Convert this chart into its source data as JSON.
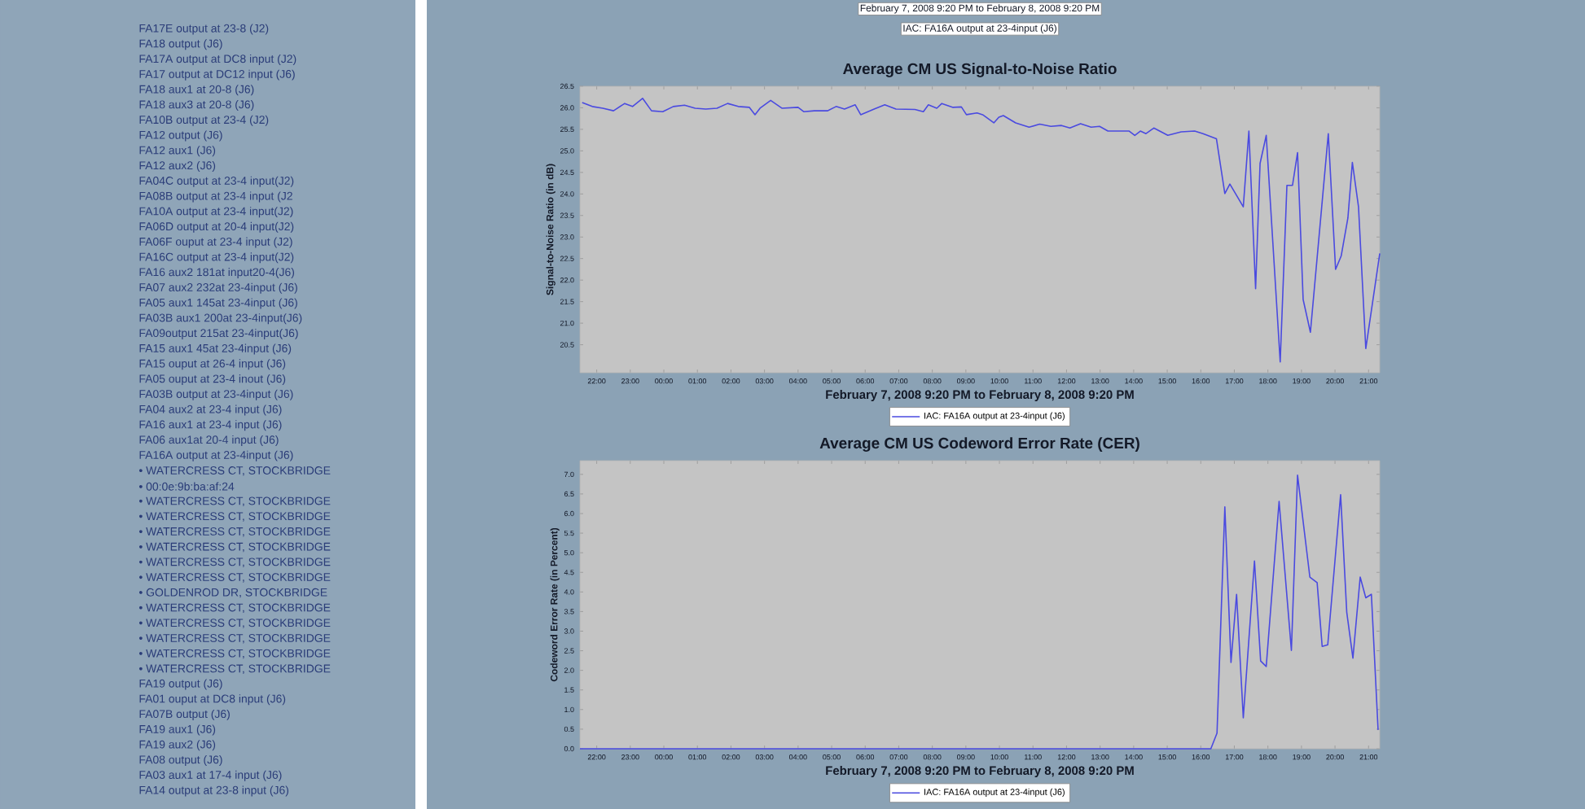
{
  "chart_data": [
    {
      "type": "other",
      "annotations": [
        "FA17E output at 23-8 (J2)",
        "FA18 output (J6)",
        "FA17A output at DC8 input (J2)",
        "FA17 output at DC12 input (J6)",
        "FA18 aux1 at 20-8 (J6)",
        "FA18 aux3 at 20-8 (J6)",
        "FA10B output at 23-4 (J2)",
        "FA12 output (J6)",
        "FA12 aux1 (J6)",
        "FA12 aux2 (J6)",
        "FA04C output at 23-4 input(J2)",
        "FA08B output at 23-4 input (J2",
        "FA10A output at 23-4 input(J2)",
        "FA06D output at 20-4 input(J2)",
        "FA06F ouput at 23-4 input (J2)",
        "FA16C output at 23-4 input(J2)",
        "FA16 aux2 181at input20-4(J6)",
        "FA07 aux2 232at 23-4input (J6)",
        "FA05 aux1 145at 23-4input (J6)",
        "FA03B aux1 200at 23-4input(J6)",
        "FA09output 215at 23-4input(J6)",
        "FA15 aux1 45at 23-4input (J6)",
        "FA15 ouput at 26-4 input (J6)",
        "FA05 ouput at 23-4 inout (J6)",
        "FA03B output at 23-4input (J6)",
        "FA04 aux2 at 23-4 input (J6)",
        "FA16 aux1 at 23-4 input (J6)",
        "FA06 aux1at 20-4 input (J6)",
        "FA16A output at 23-4input (J6)",
        "• WATERCRESS CT, STOCKBRIDGE",
        "• 00:0e:9b:ba:af:24",
        "• WATERCRESS CT, STOCKBRIDGE",
        "• WATERCRESS CT, STOCKBRIDGE",
        "• WATERCRESS CT, STOCKBRIDGE",
        "• WATERCRESS CT, STOCKBRIDGE",
        "• WATERCRESS CT, STOCKBRIDGE",
        "• WATERCRESS CT, STOCKBRIDGE",
        "• GOLDENROD DR, STOCKBRIDGE",
        "• WATERCRESS CT, STOCKBRIDGE",
        "• WATERCRESS CT, STOCKBRIDGE",
        "• WATERCRESS CT, STOCKBRIDGE",
        "• WATERCRESS CT, STOCKBRIDGE",
        "• WATERCRESS CT, STOCKBRIDGE",
        "FA19 output (J6)",
        "FA01 ouput at DC8 input (J6)",
        "FA07B output (J6)",
        "FA19 aux1 (J6)",
        "FA19 aux2 (J6)",
        "FA08 output (J6)",
        "FA03 aux1 at 17-4 input (J6)",
        "FA14 output at 23-8 input (J6)"
      ]
    },
    {
      "type": "line",
      "title": "Average CM US Signal-to-Noise Ratio",
      "xlabel": "February 7, 2008 9:20 PM to February 8, 2008 9:20 PM",
      "ylabel": "Signal-to-Noise Ratio (in dB)",
      "legend": "bottom",
      "annotations": [
        "February 7, 2008 9:20 PM to February 8, 2008 9:20 PM",
        "IAC: FA16A output at 23-4input (J6)"
      ],
      "xlim": [
        "2008-02-07T21:30",
        "2008-02-08T21:20"
      ],
      "ylim": [
        19.85,
        26.5
      ],
      "xticks": [
        {
          "value": "2008-02-07T22:00",
          "label": "22:00"
        },
        {
          "value": "2008-02-07T23:00",
          "label": "23:00"
        },
        {
          "value": "2008-02-08T00:00",
          "label": "00:00"
        },
        {
          "value": "2008-02-08T01:00",
          "label": "01:00"
        },
        {
          "value": "2008-02-08T02:00",
          "label": "02:00"
        },
        {
          "value": "2008-02-08T03:00",
          "label": "03:00"
        },
        {
          "value": "2008-02-08T04:00",
          "label": "04:00"
        },
        {
          "value": "2008-02-08T05:00",
          "label": "05:00"
        },
        {
          "value": "2008-02-08T06:00",
          "label": "06:00"
        },
        {
          "value": "2008-02-08T07:00",
          "label": "07:00"
        },
        {
          "value": "2008-02-08T08:00",
          "label": "08:00"
        },
        {
          "value": "2008-02-08T09:00",
          "label": "09:00"
        },
        {
          "value": "2008-02-08T10:00",
          "label": "10:00"
        },
        {
          "value": "2008-02-08T11:00",
          "label": "11:00"
        },
        {
          "value": "2008-02-08T12:00",
          "label": "12:00"
        },
        {
          "value": "2008-02-08T13:00",
          "label": "13:00"
        },
        {
          "value": "2008-02-08T14:00",
          "label": "14:00"
        },
        {
          "value": "2008-02-08T15:00",
          "label": "15:00"
        },
        {
          "value": "2008-02-08T16:00",
          "label": "16:00"
        },
        {
          "value": "2008-02-08T17:00",
          "label": "17:00"
        },
        {
          "value": "2008-02-08T18:00",
          "label": "18:00"
        },
        {
          "value": "2008-02-08T19:00",
          "label": "19:00"
        },
        {
          "value": "2008-02-08T20:00",
          "label": "20:00"
        },
        {
          "value": "2008-02-08T21:00",
          "label": "21:00"
        }
      ],
      "yticks": [
        {
          "value": 20.5,
          "label": "20.5"
        },
        {
          "value": 21,
          "label": "21.0"
        },
        {
          "value": 21.5,
          "label": "21.5"
        },
        {
          "value": 22,
          "label": "22.0"
        },
        {
          "value": 22.5,
          "label": "22.5"
        },
        {
          "value": 23,
          "label": "23.0"
        },
        {
          "value": 23.5,
          "label": "23.5"
        },
        {
          "value": 24,
          "label": "24.0"
        },
        {
          "value": 24.5,
          "label": "24.5"
        },
        {
          "value": 25,
          "label": "25.0"
        },
        {
          "value": 25.5,
          "label": "25.5"
        },
        {
          "value": 26,
          "label": "26.0"
        },
        {
          "value": 26.5,
          "label": "26.5"
        }
      ],
      "series": [
        {
          "name": "IAC: FA16A output at 23-4input (J6)",
          "color": "#4a4ae0",
          "x": [
            "2008-02-07T21:34",
            "2008-02-07T21:52",
            "2008-02-07T22:11",
            "2008-02-07T22:30",
            "2008-02-07T22:50",
            "2008-02-07T23:04",
            "2008-02-07T23:22",
            "2008-02-07T23:38",
            "2008-02-07T23:58",
            "2008-02-08T00:17",
            "2008-02-08T00:37",
            "2008-02-08T00:56",
            "2008-02-08T01:15",
            "2008-02-08T01:35",
            "2008-02-08T01:54",
            "2008-02-08T02:13",
            "2008-02-08T02:33",
            "2008-02-08T02:43",
            "2008-02-08T02:52",
            "2008-02-08T03:11",
            "2008-02-08T03:31",
            "2008-02-08T04:00",
            "2008-02-08T04:10",
            "2008-02-08T04:29",
            "2008-02-08T04:53",
            "2008-02-08T05:08",
            "2008-02-08T05:23",
            "2008-02-08T05:42",
            "2008-02-08T05:52",
            "2008-02-08T06:16",
            "2008-02-08T06:35",
            "2008-02-08T06:55",
            "2008-02-08T07:29",
            "2008-02-08T07:44",
            "2008-02-08T07:53",
            "2008-02-08T08:08",
            "2008-02-08T08:17",
            "2008-02-08T08:37",
            "2008-02-08T08:52",
            "2008-02-08T09:01",
            "2008-02-08T09:20",
            "2008-02-08T09:30",
            "2008-02-08T09:50",
            "2008-02-08T09:59",
            "2008-02-08T10:07",
            "2008-02-08T10:29",
            "2008-02-08T10:53",
            "2008-02-08T11:12",
            "2008-02-08T11:32",
            "2008-02-08T11:51",
            "2008-02-08T12:06",
            "2008-02-08T12:25",
            "2008-02-08T12:44",
            "2008-02-08T12:59",
            "2008-02-08T13:14",
            "2008-02-08T13:38",
            "2008-02-08T13:52",
            "2008-02-08T14:02",
            "2008-02-08T14:12",
            "2008-02-08T14:22",
            "2008-02-08T14:36",
            "2008-02-08T15:01",
            "2008-02-08T15:25",
            "2008-02-08T15:49",
            "2008-02-08T16:04",
            "2008-02-08T16:28",
            "2008-02-08T16:43",
            "2008-02-08T16:52",
            "2008-02-08T17:16",
            "2008-02-08T17:26",
            "2008-02-08T17:38",
            "2008-02-08T17:46",
            "2008-02-08T17:57",
            "2008-02-08T18:22",
            "2008-02-08T18:34",
            "2008-02-08T18:44",
            "2008-02-08T18:53",
            "2008-02-08T19:03",
            "2008-02-08T19:16",
            "2008-02-08T19:48",
            "2008-02-08T20:01",
            "2008-02-08T20:11",
            "2008-02-08T20:23",
            "2008-02-08T20:31",
            "2008-02-08T20:42",
            "2008-02-08T20:55",
            "2008-02-08T21:20"
          ],
          "values": [
            26.12,
            26.03,
            25.99,
            25.93,
            26.1,
            26.03,
            26.22,
            25.93,
            25.91,
            26.03,
            26.06,
            25.99,
            25.97,
            25.99,
            26.1,
            26.03,
            26.01,
            25.84,
            25.99,
            26.17,
            25.99,
            26.01,
            25.91,
            25.93,
            25.93,
            26.03,
            25.97,
            26.07,
            25.84,
            25.97,
            26.07,
            25.97,
            25.96,
            25.91,
            26.07,
            25.99,
            26.1,
            26.01,
            26.02,
            25.84,
            25.88,
            25.84,
            25.65,
            25.78,
            25.82,
            25.65,
            25.55,
            25.62,
            25.57,
            25.59,
            25.53,
            25.63,
            25.55,
            25.57,
            25.46,
            25.46,
            25.46,
            25.36,
            25.46,
            25.4,
            25.53,
            25.36,
            25.44,
            25.46,
            25.4,
            25.28,
            24.01,
            24.23,
            23.7,
            25.46,
            21.8,
            24.71,
            25.36,
            20.1,
            24.2,
            24.2,
            24.96,
            21.55,
            20.79,
            25.4,
            22.25,
            22.56,
            23.44,
            24.73,
            23.7,
            20.41,
            22.62
          ]
        }
      ]
    },
    {
      "type": "line",
      "title": "Average CM US Codeword Error Rate (CER)",
      "xlabel": "February 7, 2008 9:20 PM to February 8, 2008 9:20 PM",
      "ylabel": "Codeword Error Rate (in Percent)",
      "legend": "bottom",
      "xlim": [
        "2008-02-07T21:30",
        "2008-02-08T21:20"
      ],
      "ylim": [
        0,
        7.35
      ],
      "xticks": [
        {
          "value": "2008-02-07T22:00",
          "label": "22:00"
        },
        {
          "value": "2008-02-07T23:00",
          "label": "23:00"
        },
        {
          "value": "2008-02-08T00:00",
          "label": "00:00"
        },
        {
          "value": "2008-02-08T01:00",
          "label": "01:00"
        },
        {
          "value": "2008-02-08T02:00",
          "label": "02:00"
        },
        {
          "value": "2008-02-08T03:00",
          "label": "03:00"
        },
        {
          "value": "2008-02-08T04:00",
          "label": "04:00"
        },
        {
          "value": "2008-02-08T05:00",
          "label": "05:00"
        },
        {
          "value": "2008-02-08T06:00",
          "label": "06:00"
        },
        {
          "value": "2008-02-08T07:00",
          "label": "07:00"
        },
        {
          "value": "2008-02-08T08:00",
          "label": "08:00"
        },
        {
          "value": "2008-02-08T09:00",
          "label": "09:00"
        },
        {
          "value": "2008-02-08T10:00",
          "label": "10:00"
        },
        {
          "value": "2008-02-08T11:00",
          "label": "11:00"
        },
        {
          "value": "2008-02-08T12:00",
          "label": "12:00"
        },
        {
          "value": "2008-02-08T13:00",
          "label": "13:00"
        },
        {
          "value": "2008-02-08T14:00",
          "label": "14:00"
        },
        {
          "value": "2008-02-08T15:00",
          "label": "15:00"
        },
        {
          "value": "2008-02-08T16:00",
          "label": "16:00"
        },
        {
          "value": "2008-02-08T17:00",
          "label": "17:00"
        },
        {
          "value": "2008-02-08T18:00",
          "label": "18:00"
        },
        {
          "value": "2008-02-08T19:00",
          "label": "19:00"
        },
        {
          "value": "2008-02-08T20:00",
          "label": "20:00"
        },
        {
          "value": "2008-02-08T21:00",
          "label": "21:00"
        }
      ],
      "yticks": [
        {
          "value": 0,
          "label": "0.0"
        },
        {
          "value": 0.5,
          "label": "0.5"
        },
        {
          "value": 1,
          "label": "1.0"
        },
        {
          "value": 1.5,
          "label": "1.5"
        },
        {
          "value": 2,
          "label": "2.0"
        },
        {
          "value": 2.5,
          "label": "2.5"
        },
        {
          "value": 3,
          "label": "3.0"
        },
        {
          "value": 3.5,
          "label": "3.5"
        },
        {
          "value": 4,
          "label": "4.0"
        },
        {
          "value": 4.5,
          "label": "4.5"
        },
        {
          "value": 5,
          "label": "5.0"
        },
        {
          "value": 5.5,
          "label": "5.5"
        },
        {
          "value": 6,
          "label": "6.0"
        },
        {
          "value": 6.5,
          "label": "6.5"
        },
        {
          "value": 7,
          "label": "7.0"
        }
      ],
      "series": [
        {
          "name": "IAC: FA16A output at 23-4input (J6)",
          "color": "#4a4ae0",
          "x": [
            "2008-02-07T21:30",
            "2008-02-07T22:30",
            "2008-02-07T23:30",
            "2008-02-08T00:30",
            "2008-02-08T01:30",
            "2008-02-08T02:30",
            "2008-02-08T03:30",
            "2008-02-08T04:30",
            "2008-02-08T05:30",
            "2008-02-08T06:30",
            "2008-02-08T07:30",
            "2008-02-08T08:30",
            "2008-02-08T09:30",
            "2008-02-08T10:30",
            "2008-02-08T11:30",
            "2008-02-08T12:30",
            "2008-02-08T13:30",
            "2008-02-08T14:30",
            "2008-02-08T15:30",
            "2008-02-08T16:18",
            "2008-02-08T16:29",
            "2008-02-08T16:43",
            "2008-02-08T16:54",
            "2008-02-08T17:04",
            "2008-02-08T17:16",
            "2008-02-08T17:36",
            "2008-02-08T17:47",
            "2008-02-08T17:57",
            "2008-02-08T18:20",
            "2008-02-08T18:42",
            "2008-02-08T18:53",
            "2008-02-08T19:15",
            "2008-02-08T19:28",
            "2008-02-08T19:37",
            "2008-02-08T19:47",
            "2008-02-08T20:10",
            "2008-02-08T20:21",
            "2008-02-08T20:32",
            "2008-02-08T20:45",
            "2008-02-08T20:55",
            "2008-02-08T21:05",
            "2008-02-08T21:17"
          ],
          "values": [
            0,
            0,
            0,
            0,
            0,
            0,
            0,
            0,
            0,
            0,
            0,
            0,
            0,
            0,
            0,
            0,
            0,
            0,
            0,
            0,
            0.4,
            6.17,
            2.2,
            3.94,
            0.79,
            4.79,
            2.24,
            2.1,
            6.31,
            2.51,
            6.98,
            4.38,
            4.24,
            2.61,
            2.65,
            6.48,
            3.48,
            2.31,
            4.38,
            3.85,
            3.94,
            0.48
          ]
        }
      ]
    }
  ]
}
